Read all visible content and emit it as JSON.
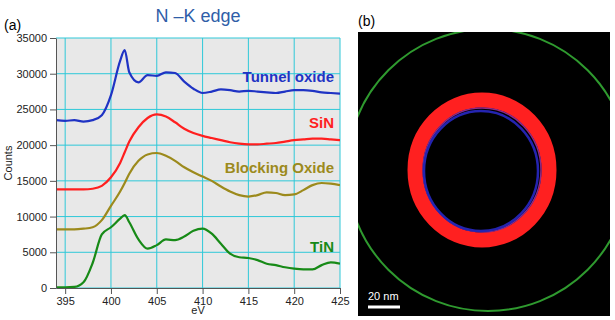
{
  "chart_data": {
    "type": "line",
    "title": "N –K edge",
    "panel_label": "(a)",
    "x_label": "eV",
    "y_label": "Counts",
    "x": [
      394,
      395,
      396,
      397,
      398,
      399,
      400,
      401,
      401.5,
      402,
      403,
      404,
      405,
      406,
      407,
      408,
      409,
      410,
      411,
      412,
      413,
      414,
      415,
      416,
      417,
      418,
      419,
      420,
      421,
      422,
      423,
      424,
      425
    ],
    "series": [
      {
        "name": "Tunnel oxide",
        "color": "#1f33c4",
        "values": [
          23500,
          23400,
          23500,
          23300,
          23500,
          24200,
          27000,
          31800,
          33300,
          30200,
          28800,
          29800,
          29700,
          30200,
          30100,
          28900,
          27900,
          27300,
          27500,
          27800,
          27700,
          27500,
          27600,
          27500,
          27400,
          27300,
          27500,
          27700,
          27700,
          27600,
          27400,
          27300,
          27200
        ]
      },
      {
        "name": "SiN",
        "color": "#ff1f1f",
        "values": [
          13800,
          13800,
          13800,
          13800,
          13900,
          14300,
          15500,
          17500,
          19000,
          20500,
          22500,
          23800,
          24300,
          24000,
          23200,
          22300,
          21700,
          21300,
          21000,
          20700,
          20400,
          20200,
          20100,
          20100,
          20200,
          20300,
          20500,
          20700,
          20800,
          20900,
          20900,
          20800,
          20700
        ]
      },
      {
        "name": "Blocking Oxide",
        "color": "#9c8a1c",
        "values": [
          8200,
          8200,
          8200,
          8300,
          8500,
          9500,
          11500,
          13500,
          14700,
          16000,
          17800,
          18700,
          18900,
          18500,
          17800,
          16900,
          16200,
          15600,
          15000,
          14200,
          13500,
          13000,
          12800,
          13000,
          13400,
          13300,
          13000,
          13100,
          13700,
          14400,
          14700,
          14600,
          14400
        ]
      },
      {
        "name": "TiN",
        "color": "#178a17",
        "values": [
          100,
          100,
          150,
          800,
          3500,
          7500,
          8500,
          9700,
          10200,
          9200,
          6800,
          5500,
          6000,
          6800,
          6700,
          7200,
          8000,
          8300,
          7600,
          6200,
          4800,
          4300,
          4200,
          3900,
          3400,
          3200,
          2900,
          2700,
          2600,
          2600,
          3200,
          3600,
          3400
        ]
      }
    ],
    "xlim": [
      394,
      425
    ],
    "xticks": [
      395,
      400,
      405,
      410,
      415,
      420,
      425
    ],
    "ylim": [
      0,
      35000
    ],
    "yticks": [
      0,
      5000,
      10000,
      15000,
      20000,
      25000,
      30000,
      35000
    ],
    "grid": true
  },
  "image": {
    "panel_label": "(b)",
    "scale_bar_label": "20 nm"
  }
}
